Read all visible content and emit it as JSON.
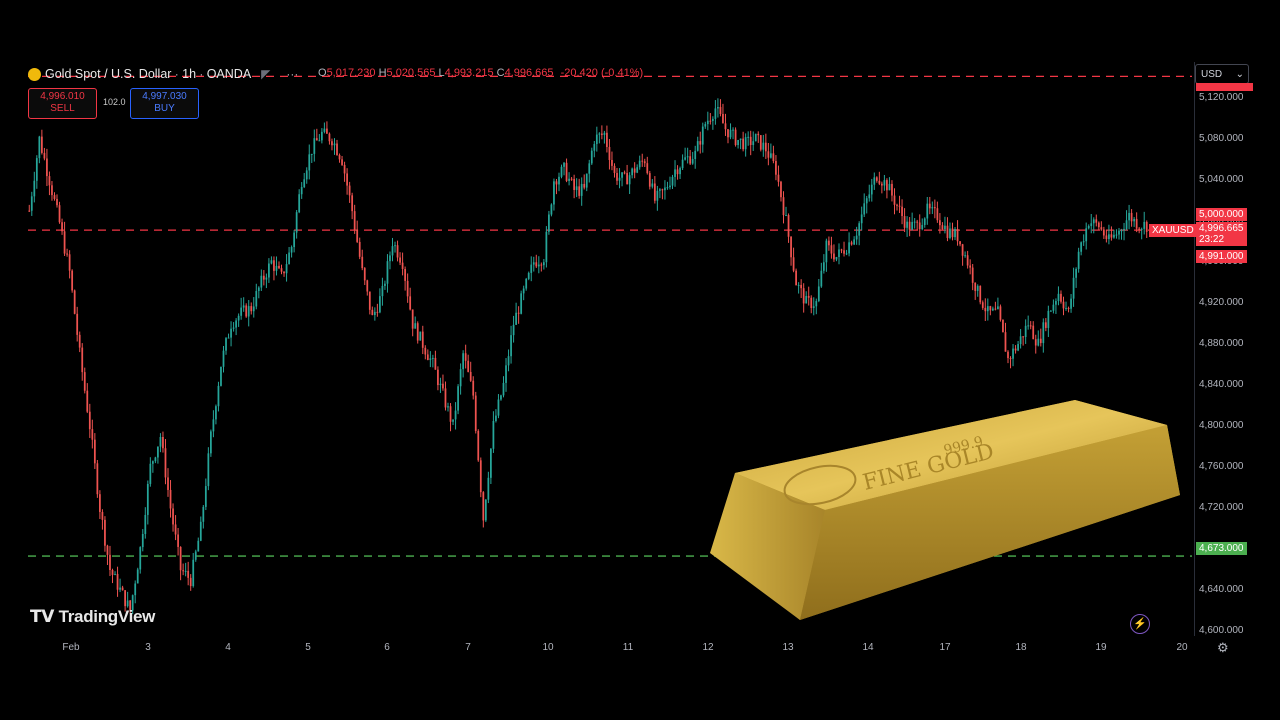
{
  "header": {
    "symbol": "Gold Spot / U.S. Dollar",
    "interval": "1h",
    "exchange": "OANDA",
    "ohlc": {
      "o_label": "O",
      "o": "5,017.230",
      "h_label": "H",
      "h": "5,020.565",
      "l_label": "L",
      "l": "4,993.215",
      "c_label": "C",
      "c": "4,996.665",
      "change": "-20.420 (-0.41%)"
    }
  },
  "trade": {
    "sell_price": "4,996.010",
    "sell_label": "SELL",
    "spread": "102.0",
    "buy_price": "4,997.030",
    "buy_label": "BUY"
  },
  "currency": "USD",
  "price_tags": {
    "level_5000": "5,000.000",
    "symbol": "XAUUSD",
    "last": "4,996.665",
    "countdown": "23:22",
    "level_4991": "4,991.000",
    "level_4673": "4,673.000",
    "top_partial": "5,1_ _.000"
  },
  "brand": "TradingView",
  "colors": {
    "up": "#26a69a",
    "down": "#ef5350",
    "resistance": "#f23645",
    "support": "#4caf50",
    "gold": "#d4b24a"
  },
  "chart_data": {
    "type": "candlestick",
    "y_ticks": [
      "5,120.000",
      "5,080.000",
      "5,040.000",
      "5,000.000",
      "4,960.000",
      "4,920.000",
      "4,880.000",
      "4,840.000",
      "4,800.000",
      "4,760.000",
      "4,720.000",
      "4,680.000",
      "4,640.000",
      "4,600.000"
    ],
    "x_ticks": [
      "Feb",
      "3",
      "4",
      "5",
      "6",
      "7",
      "10",
      "11",
      "12",
      "13",
      "14",
      "17",
      "18",
      "19",
      "20"
    ],
    "ylim": [
      4595,
      5155
    ],
    "horizontal_lines": [
      {
        "value": 5141,
        "style": "dashed",
        "color": "#f23645"
      },
      {
        "value": 4991,
        "style": "dashed",
        "color": "#f23645"
      },
      {
        "value": 4673,
        "style": "dashed",
        "color": "#4caf50"
      }
    ],
    "close_path": [
      5010,
      5080,
      5040,
      4998,
      4950,
      4870,
      4800,
      4720,
      4660,
      4640,
      4620,
      4680,
      4760,
      4790,
      4720,
      4660,
      4650,
      4700,
      4790,
      4860,
      4900,
      4910,
      4915,
      4940,
      4960,
      4945,
      4975,
      5040,
      5070,
      5085,
      5080,
      5060,
      5010,
      4950,
      4905,
      4930,
      4980,
      4960,
      4900,
      4880,
      4860,
      4830,
      4800,
      4870,
      4830,
      4710,
      4800,
      4840,
      4900,
      4930,
      4960,
      4965,
      5040,
      5050,
      5030,
      5030,
      5080,
      5085,
      5045,
      5040,
      5050,
      5060,
      5020,
      5030,
      5050,
      5060,
      5065,
      5095,
      5110,
      5090,
      5080,
      5075,
      5080,
      5070,
      5050,
      5000,
      4940,
      4920,
      4920,
      4975,
      4965,
      4975,
      4990,
      5020,
      5045,
      5035,
      5015,
      4995,
      4995,
      5010,
      5005,
      4990,
      4985,
      4960,
      4930,
      4910,
      4910,
      4865,
      4880,
      4900,
      4880,
      4910,
      4930,
      4910,
      4970,
      5000,
      4995,
      4980,
      4990,
      5005,
      4996
    ]
  }
}
